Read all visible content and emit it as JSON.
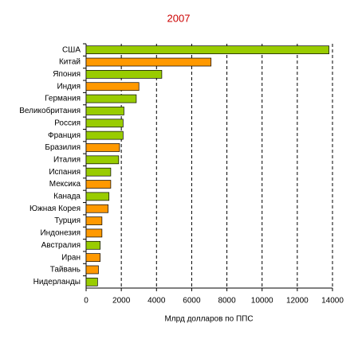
{
  "chart_data": {
    "type": "barh",
    "title": "2007",
    "xlabel": "Млрд долларов по ППС",
    "categories": [
      "США",
      "Китай",
      "Япония",
      "Индия",
      "Германия",
      "Великобритания",
      "Россия",
      "Франция",
      "Бразилия",
      "Италия",
      "Испания",
      "Мексика",
      "Канада",
      "Южная Корея",
      "Турция",
      "Индонезия",
      "Австралия",
      "Иран",
      "Тайвань",
      "Нидерланды"
    ],
    "values": [
      13800,
      7100,
      4300,
      3000,
      2850,
      2150,
      2100,
      2100,
      1900,
      1850,
      1400,
      1400,
      1300,
      1250,
      900,
      900,
      800,
      800,
      700,
      650
    ],
    "colors": [
      "#99cc00",
      "#ff9900",
      "#99cc00",
      "#ff9900",
      "#99cc00",
      "#99cc00",
      "#99cc00",
      "#99cc00",
      "#ff9900",
      "#99cc00",
      "#99cc00",
      "#ff9900",
      "#99cc00",
      "#ff9900",
      "#ff9900",
      "#ff9900",
      "#99cc00",
      "#ff9900",
      "#ff9900",
      "#99cc00"
    ],
    "xlim": [
      0,
      14000
    ],
    "xticks": [
      0,
      2000,
      4000,
      6000,
      8000,
      10000,
      12000,
      14000
    ],
    "grid": true
  }
}
